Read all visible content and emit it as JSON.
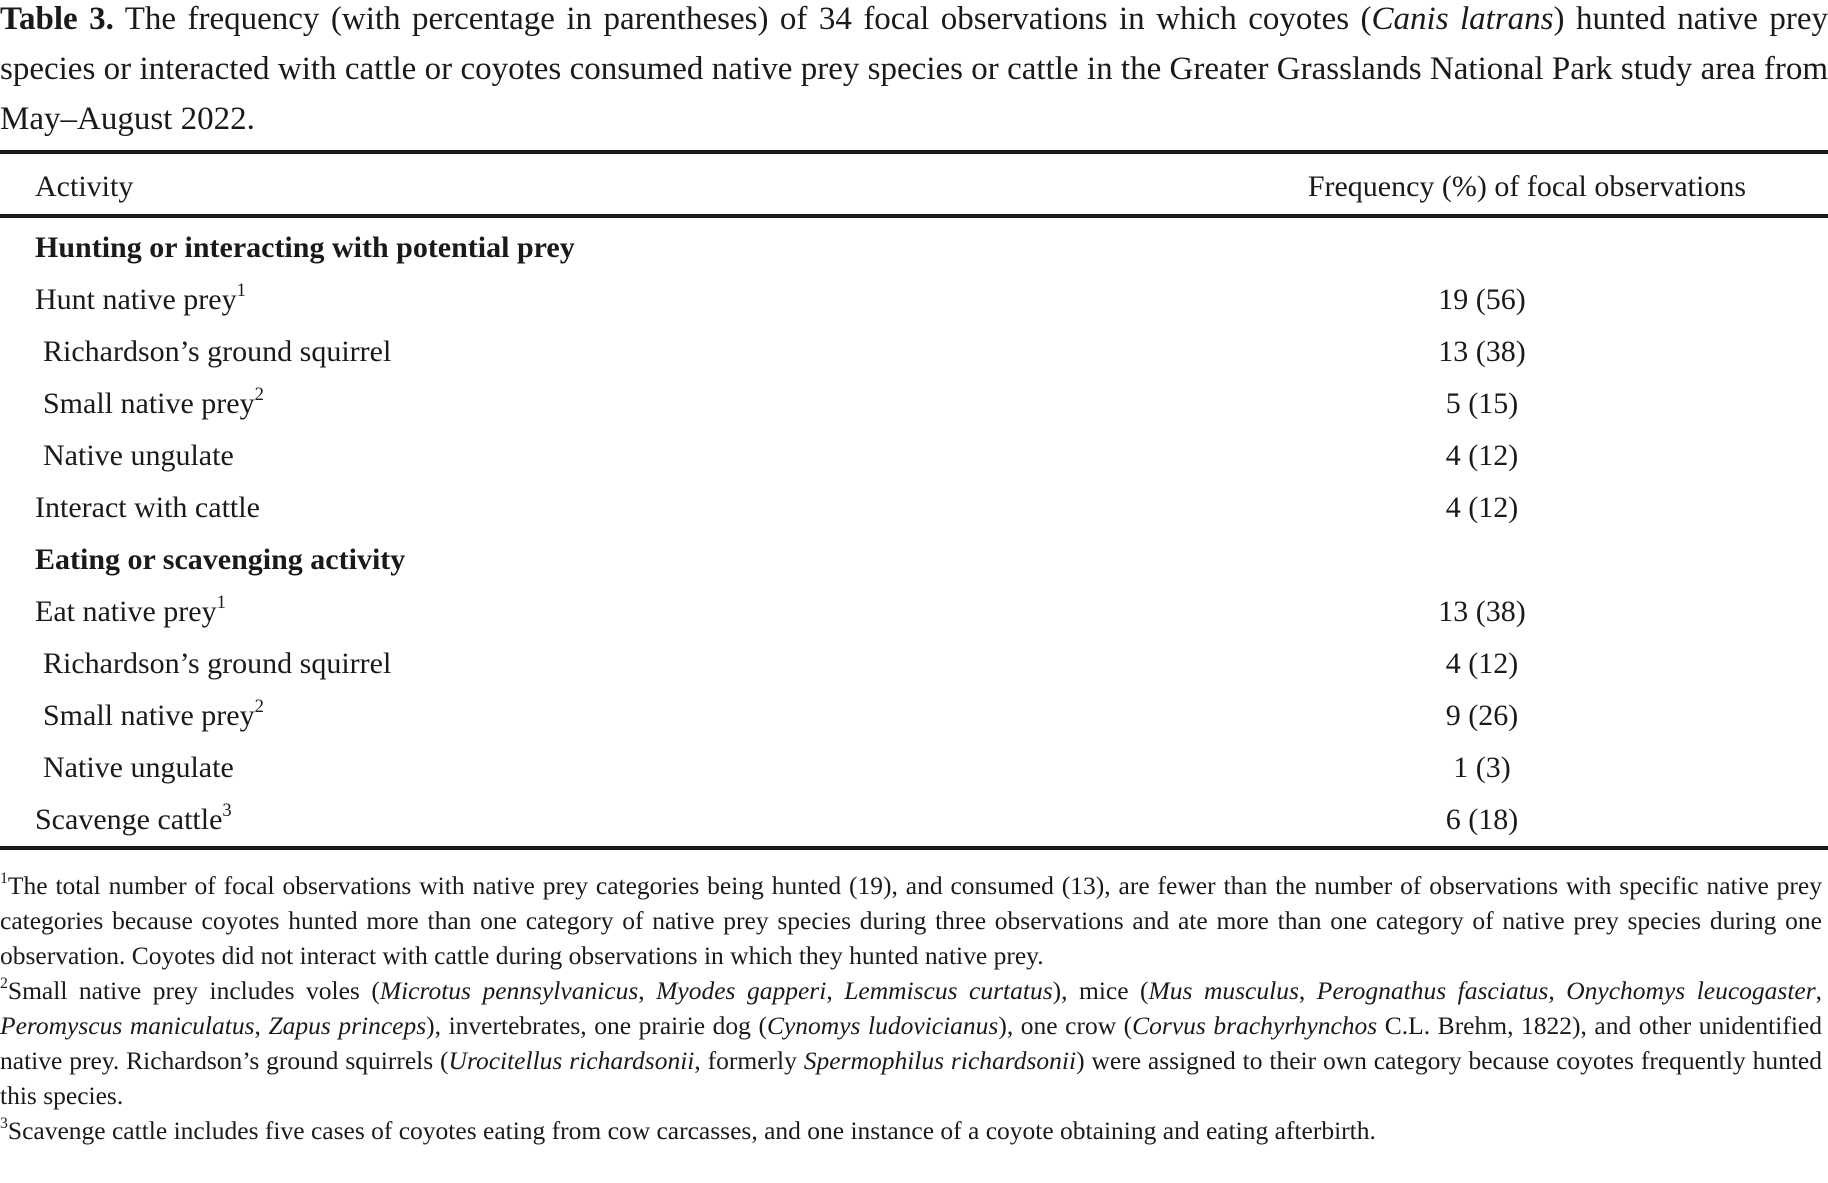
{
  "caption": {
    "label": "Table 3.",
    "text_1": " The frequency (with percentage in parentheses) of 34 focal observations in which coyotes (",
    "italic_1": "Canis latrans",
    "text_2": ") hunted native prey species or interacted with cattle or coyotes consumed native prey species or cattle in the Greater Grasslands National Park study area from May–August 2022."
  },
  "table": {
    "headers": {
      "activity": "Activity",
      "frequency": "Frequency (%) of focal observations"
    },
    "rows": [
      {
        "activity": "Hunting or interacting with potential prey",
        "sup": "",
        "value": "",
        "type": "section"
      },
      {
        "activity": "Hunt native prey",
        "sup": "1",
        "value": "19 (56)",
        "type": "main"
      },
      {
        "activity": "Richardson’s ground squirrel",
        "sup": "",
        "value": "13 (38)",
        "type": "sub"
      },
      {
        "activity": "Small native prey",
        "sup": "2",
        "value": "5 (15)",
        "type": "sub"
      },
      {
        "activity": "Native ungulate",
        "sup": "",
        "value": "4 (12)",
        "type": "sub"
      },
      {
        "activity": "Interact with cattle",
        "sup": "",
        "value": "4 (12)",
        "type": "main"
      },
      {
        "activity": "Eating or scavenging activity",
        "sup": "",
        "value": "",
        "type": "section"
      },
      {
        "activity": "Eat native prey",
        "sup": "1",
        "value": "13 (38)",
        "type": "main"
      },
      {
        "activity": "Richardson’s ground squirrel",
        "sup": "",
        "value": "4 (12)",
        "type": "sub"
      },
      {
        "activity": "Small native prey",
        "sup": "2",
        "value": "9 (26)",
        "type": "sub"
      },
      {
        "activity": "Native ungulate",
        "sup": "",
        "value": "1 (3)",
        "type": "sub"
      },
      {
        "activity": "Scavenge cattle",
        "sup": "3",
        "value": "6 (18)",
        "type": "main"
      }
    ]
  },
  "footnotes": {
    "fn1": {
      "mark": "1",
      "text": "The total number of focal observations with native prey categories being hunted (19), and consumed (13), are fewer than the number of observations with specific native prey categories because coyotes hunted more than one category of native prey species during three observations and ate more than one category of native prey species during one observation. Coyotes did not interact with cattle during observations in which they hunted native prey."
    },
    "fn2": {
      "mark": "2",
      "t1": "Small native prey includes voles (",
      "i1": "Microtus pennsylvanicus",
      "t2": ", ",
      "i2": "Myodes gapperi",
      "t3": ", ",
      "i3": "Lemmiscus curtatus",
      "t4": "), mice (",
      "i4": "Mus musculus",
      "t5": ", ",
      "i5": "Perognathus fasciatus",
      "t6": ", ",
      "i6": "Onychomys leucogaster",
      "t7": ", ",
      "i7": "Peromyscus maniculatus",
      "t8": ", ",
      "i8": "Zapus princeps",
      "t9": "), invertebrates, one prairie dog (",
      "i9": "Cynomys ludovicianus",
      "t10": "), one crow (",
      "i10": "Corvus brachyrhynchos",
      "t11": " C.L. Brehm, 1822), and other unidentified native prey. Richardson’s ground squirrels (",
      "i11": "Urocitellus richardsonii",
      "t12": ", formerly ",
      "i12": "Spermophilus richardsonii",
      "t13": ") were assigned to their own category because coyotes frequently hunted this species."
    },
    "fn3": {
      "mark": "3",
      "text": "Scavenge cattle includes five cases of coyotes eating from cow carcasses, and one instance of a coyote obtaining and eating afterbirth."
    }
  }
}
